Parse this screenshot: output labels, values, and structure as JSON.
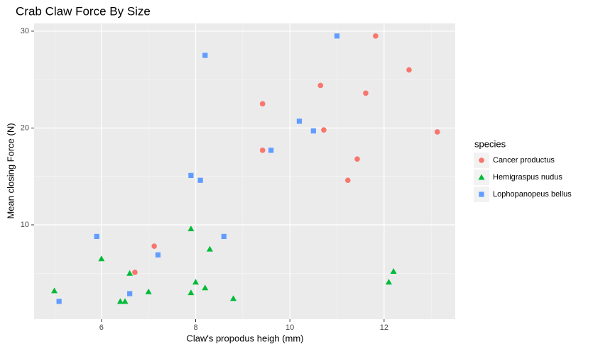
{
  "chart_data": {
    "type": "scatter",
    "title": "Crab Claw Force By Size",
    "x_label": "Claw's propodus heigh (mm)",
    "y_label": "Mean closing Force (N)",
    "legend_title": "species",
    "legend_position": "right",
    "grid": true,
    "xlim": [
      4.57,
      13.51
    ],
    "ylim": [
      0.26,
      30.8
    ],
    "xticks": [
      6,
      8,
      10,
      12
    ],
    "yticks": [
      10,
      20,
      30
    ],
    "series": [
      {
        "name": "Cancer productus",
        "color": "#F8766D",
        "shape": "circle",
        "x": [
          11.82,
          12.53,
          10.65,
          11.61,
          9.42,
          10.72,
          13.13,
          9.42,
          11.43,
          11.23,
          7.12,
          6.71
        ],
        "values": [
          29.5,
          26.0,
          24.4,
          23.6,
          22.5,
          19.8,
          19.6,
          17.7,
          16.8,
          14.6,
          7.8,
          5.1
        ]
      },
      {
        "name": "Hemigraspus nudus",
        "color": "#00BA38",
        "shape": "triangle",
        "x": [
          5.0,
          6.0,
          6.6,
          7.9,
          8.3,
          8.0,
          7.9,
          8.2,
          7.0,
          6.4,
          6.5,
          8.8,
          12.2,
          12.1
        ],
        "values": [
          3.2,
          6.5,
          5.0,
          9.6,
          7.5,
          4.1,
          3.0,
          3.5,
          3.1,
          2.1,
          2.1,
          2.4,
          5.2,
          4.1
        ]
      },
      {
        "name": "Lophopanopeus bellus",
        "color": "#619CFF",
        "shape": "square",
        "x": [
          11.0,
          8.2,
          10.2,
          10.5,
          9.6,
          7.9,
          8.1,
          5.9,
          8.6,
          7.2,
          6.6,
          5.1
        ],
        "values": [
          29.5,
          27.5,
          20.7,
          19.7,
          17.7,
          15.1,
          14.6,
          8.8,
          8.8,
          6.9,
          2.9,
          2.1
        ]
      }
    ]
  }
}
